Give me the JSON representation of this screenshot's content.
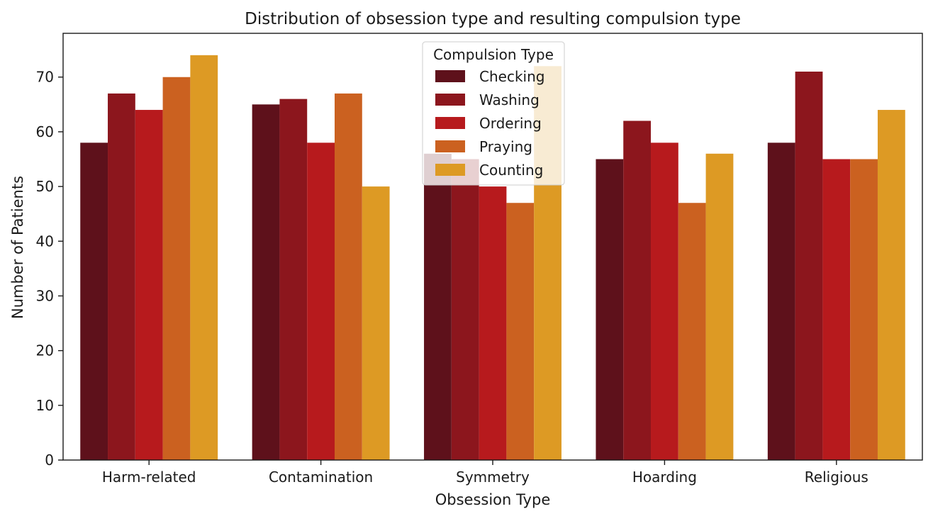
{
  "chart_data": {
    "type": "bar",
    "title": "Distribution of obsession type and resulting compulsion type",
    "xlabel": "Obsession Type",
    "ylabel": "Number of Patients",
    "ylim": [
      0,
      78
    ],
    "yticks": [
      0,
      10,
      20,
      30,
      40,
      50,
      60,
      70
    ],
    "categories": [
      "Harm-related",
      "Contamination",
      "Symmetry",
      "Hoarding",
      "Religious"
    ],
    "legend": {
      "title": "Compulsion Type",
      "placement": "top-center"
    },
    "grid": false,
    "series": [
      {
        "name": "Checking",
        "color": "#5e111b",
        "values": [
          58,
          65,
          56,
          55,
          58
        ]
      },
      {
        "name": "Washing",
        "color": "#8c161d",
        "values": [
          67,
          66,
          55,
          62,
          71
        ]
      },
      {
        "name": "Ordering",
        "color": "#b71a1d",
        "values": [
          64,
          58,
          50,
          58,
          55
        ]
      },
      {
        "name": "Praying",
        "color": "#cb6120",
        "values": [
          70,
          67,
          47,
          47,
          55
        ]
      },
      {
        "name": "Counting",
        "color": "#dd9a24",
        "values": [
          74,
          50,
          72,
          56,
          64
        ]
      }
    ]
  }
}
